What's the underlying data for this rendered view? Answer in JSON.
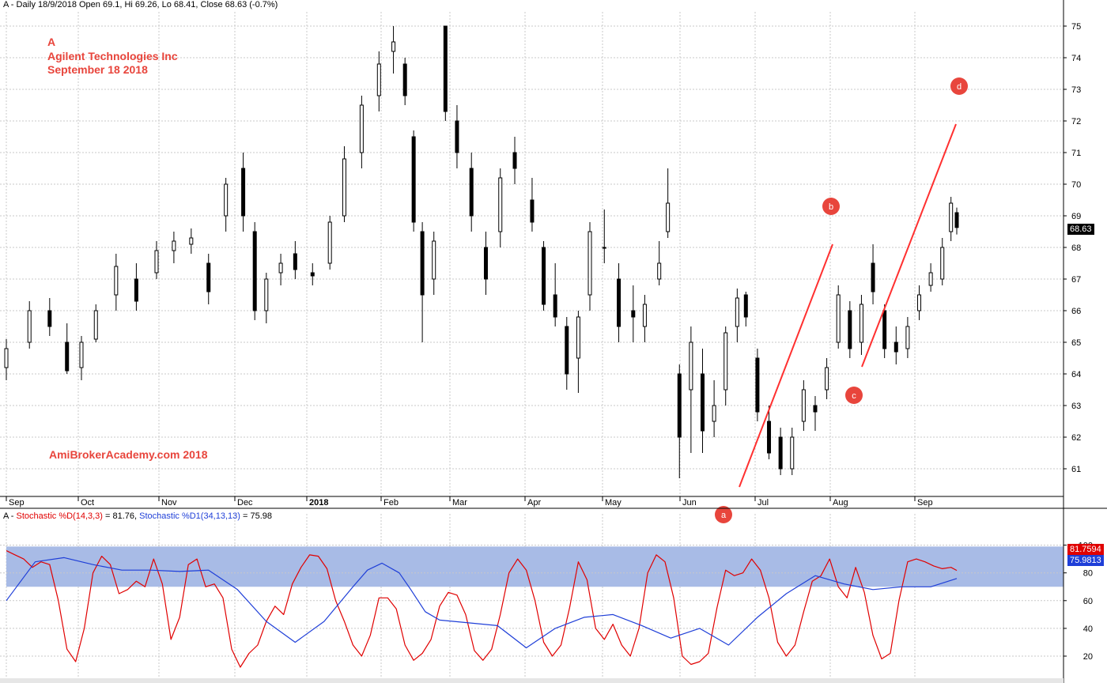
{
  "header": {
    "text": "A - Daily 18/9/2018 Open 69.1, Hi 69.26, Lo 68.41, Close 68.63 (-0.7%)"
  },
  "annotations": {
    "ticker": "A",
    "company": "Agilent Technologies Inc",
    "date": "September 18 2018",
    "watermark": "AmiBrokerAcademy.com  2018"
  },
  "oscillator_header": {
    "prefix": "A - ",
    "k_label": "Stochastic %D(14,3,3)",
    "k_value": " = 81.76, ",
    "d_label": "Stochastic %D1(34,13,13)",
    "d_value": " = 75.98"
  },
  "last_tags": {
    "price": "68.63",
    "k": "81.7594",
    "d": "75.9813"
  },
  "colors": {
    "annotation": "#e8453c",
    "band": "#a8bbe6",
    "k_line": "#e00000",
    "d_line": "#1f3fd8",
    "trendline": "#ff3030",
    "candle": "#000000"
  },
  "chart_data": [
    {
      "type": "candlestick",
      "title": "A - Daily 18/9/2018",
      "ylim": [
        60.5,
        75.2
      ],
      "y_ticks": [
        61,
        62,
        63,
        64,
        65,
        66,
        67,
        68,
        69,
        70,
        71,
        72,
        73,
        74,
        75
      ],
      "x_ticks": [
        "Sep",
        "Oct",
        "Nov",
        "Dec",
        "2018",
        "Feb",
        "Mar",
        "Apr",
        "May",
        "Jun",
        "Jul",
        "Aug",
        "Sep"
      ],
      "grid": true,
      "last_close": 68.63,
      "ohlc_sampled": [
        {
          "x": 0,
          "o": 64.2,
          "h": 65.1,
          "l": 63.8,
          "c": 64.8
        },
        {
          "x": 8,
          "o": 65.0,
          "h": 66.3,
          "l": 64.8,
          "c": 66.0
        },
        {
          "x": 15,
          "o": 66.0,
          "h": 66.4,
          "l": 65.2,
          "c": 65.5
        },
        {
          "x": 21,
          "o": 65.0,
          "h": 65.6,
          "l": 64.0,
          "c": 64.1
        },
        {
          "x": 26,
          "o": 64.2,
          "h": 65.2,
          "l": 63.8,
          "c": 65.0
        },
        {
          "x": 31,
          "o": 65.1,
          "h": 66.2,
          "l": 65.0,
          "c": 66.0
        },
        {
          "x": 38,
          "o": 66.5,
          "h": 67.8,
          "l": 66.0,
          "c": 67.4
        },
        {
          "x": 45,
          "o": 67.0,
          "h": 67.5,
          "l": 66.0,
          "c": 66.3
        },
        {
          "x": 52,
          "o": 67.2,
          "h": 68.2,
          "l": 67.0,
          "c": 67.9
        },
        {
          "x": 58,
          "o": 67.9,
          "h": 68.5,
          "l": 67.5,
          "c": 68.2
        },
        {
          "x": 64,
          "o": 68.1,
          "h": 68.6,
          "l": 67.8,
          "c": 68.3
        },
        {
          "x": 70,
          "o": 67.5,
          "h": 67.8,
          "l": 66.2,
          "c": 66.6
        },
        {
          "x": 76,
          "o": 69.0,
          "h": 70.2,
          "l": 68.5,
          "c": 70.0
        },
        {
          "x": 82,
          "o": 70.5,
          "h": 71.0,
          "l": 68.5,
          "c": 69.0
        },
        {
          "x": 86,
          "o": 68.5,
          "h": 68.8,
          "l": 65.7,
          "c": 66.0
        },
        {
          "x": 90,
          "o": 66.0,
          "h": 67.2,
          "l": 65.6,
          "c": 67.0
        },
        {
          "x": 95,
          "o": 67.2,
          "h": 67.8,
          "l": 66.8,
          "c": 67.5
        },
        {
          "x": 100,
          "o": 67.8,
          "h": 68.2,
          "l": 67.0,
          "c": 67.3
        },
        {
          "x": 106,
          "o": 67.2,
          "h": 67.5,
          "l": 66.8,
          "c": 67.1
        },
        {
          "x": 112,
          "o": 67.5,
          "h": 69.0,
          "l": 67.3,
          "c": 68.8
        },
        {
          "x": 117,
          "o": 69.0,
          "h": 71.2,
          "l": 68.8,
          "c": 70.8
        },
        {
          "x": 123,
          "o": 71.0,
          "h": 72.8,
          "l": 70.5,
          "c": 72.5
        },
        {
          "x": 129,
          "o": 72.8,
          "h": 74.2,
          "l": 72.3,
          "c": 73.8
        },
        {
          "x": 134,
          "o": 74.2,
          "h": 75.0,
          "l": 73.5,
          "c": 74.5
        },
        {
          "x": 138,
          "o": 73.8,
          "h": 74.0,
          "l": 72.5,
          "c": 72.8
        },
        {
          "x": 141,
          "o": 71.5,
          "h": 71.7,
          "l": 68.5,
          "c": 68.8
        },
        {
          "x": 144,
          "o": 68.5,
          "h": 68.8,
          "l": 65.0,
          "c": 66.5
        },
        {
          "x": 148,
          "o": 67.0,
          "h": 68.5,
          "l": 66.5,
          "c": 68.2
        },
        {
          "x": 152,
          "o": 75.0,
          "h": 75.0,
          "l": 72.0,
          "c": 72.3
        },
        {
          "x": 156,
          "o": 72.0,
          "h": 72.5,
          "l": 70.5,
          "c": 71.0
        },
        {
          "x": 161,
          "o": 70.5,
          "h": 71.0,
          "l": 68.5,
          "c": 69.0
        },
        {
          "x": 166,
          "o": 68.0,
          "h": 68.5,
          "l": 66.5,
          "c": 67.0
        },
        {
          "x": 171,
          "o": 68.5,
          "h": 70.5,
          "l": 68.0,
          "c": 70.2
        },
        {
          "x": 176,
          "o": 71.0,
          "h": 71.5,
          "l": 70.0,
          "c": 70.5
        },
        {
          "x": 182,
          "o": 69.5,
          "h": 70.2,
          "l": 68.5,
          "c": 68.8
        },
        {
          "x": 186,
          "o": 68.0,
          "h": 68.2,
          "l": 66.0,
          "c": 66.2
        },
        {
          "x": 190,
          "o": 66.5,
          "h": 67.5,
          "l": 65.5,
          "c": 65.8
        },
        {
          "x": 194,
          "o": 65.5,
          "h": 65.8,
          "l": 63.5,
          "c": 64.0
        },
        {
          "x": 198,
          "o": 64.5,
          "h": 66.0,
          "l": 63.4,
          "c": 65.8
        },
        {
          "x": 202,
          "o": 66.5,
          "h": 68.8,
          "l": 66.0,
          "c": 68.5
        },
        {
          "x": 207,
          "o": 68.0,
          "h": 69.2,
          "l": 67.5,
          "c": 68.0
        },
        {
          "x": 212,
          "o": 67.0,
          "h": 67.5,
          "l": 65.0,
          "c": 65.5
        },
        {
          "x": 217,
          "o": 66.0,
          "h": 66.8,
          "l": 65.0,
          "c": 65.8
        },
        {
          "x": 221,
          "o": 65.5,
          "h": 66.5,
          "l": 65.0,
          "c": 66.2
        },
        {
          "x": 226,
          "o": 67.0,
          "h": 68.2,
          "l": 66.8,
          "c": 67.5
        },
        {
          "x": 229,
          "o": 68.5,
          "h": 70.5,
          "l": 68.3,
          "c": 69.4
        },
        {
          "x": 233,
          "o": 64.0,
          "h": 64.3,
          "l": 60.7,
          "c": 62.0
        },
        {
          "x": 237,
          "o": 63.5,
          "h": 65.5,
          "l": 61.5,
          "c": 65.0
        },
        {
          "x": 241,
          "o": 64.0,
          "h": 64.8,
          "l": 61.5,
          "c": 62.2
        },
        {
          "x": 245,
          "o": 62.5,
          "h": 63.8,
          "l": 62.0,
          "c": 63.0
        },
        {
          "x": 249,
          "o": 63.5,
          "h": 65.5,
          "l": 63.0,
          "c": 65.3
        },
        {
          "x": 253,
          "o": 65.5,
          "h": 66.7,
          "l": 65.0,
          "c": 66.4
        },
        {
          "x": 256,
          "o": 66.5,
          "h": 66.6,
          "l": 65.5,
          "c": 65.8
        },
        {
          "x": 260,
          "o": 64.5,
          "h": 64.8,
          "l": 62.5,
          "c": 62.8
        },
        {
          "x": 264,
          "o": 62.5,
          "h": 63.0,
          "l": 61.3,
          "c": 61.5
        },
        {
          "x": 268,
          "o": 62.0,
          "h": 62.3,
          "l": 60.8,
          "c": 61.0
        },
        {
          "x": 272,
          "o": 61.0,
          "h": 62.3,
          "l": 60.8,
          "c": 62.0
        },
        {
          "x": 276,
          "o": 62.5,
          "h": 63.8,
          "l": 62.2,
          "c": 63.5
        },
        {
          "x": 280,
          "o": 63.0,
          "h": 63.3,
          "l": 62.2,
          "c": 62.8
        },
        {
          "x": 284,
          "o": 63.5,
          "h": 64.5,
          "l": 63.2,
          "c": 64.2
        },
        {
          "x": 288,
          "o": 65.0,
          "h": 66.8,
          "l": 64.8,
          "c": 66.5
        },
        {
          "x": 292,
          "o": 66.0,
          "h": 66.3,
          "l": 64.5,
          "c": 64.8
        },
        {
          "x": 296,
          "o": 65.0,
          "h": 66.5,
          "l": 64.6,
          "c": 66.2
        },
        {
          "x": 300,
          "o": 67.5,
          "h": 68.1,
          "l": 66.2,
          "c": 66.6
        },
        {
          "x": 304,
          "o": 66.0,
          "h": 66.2,
          "l": 64.5,
          "c": 64.8
        },
        {
          "x": 308,
          "o": 65.0,
          "h": 65.5,
          "l": 64.3,
          "c": 64.7
        },
        {
          "x": 312,
          "o": 64.8,
          "h": 65.8,
          "l": 64.5,
          "c": 65.5
        },
        {
          "x": 316,
          "o": 66.0,
          "h": 66.8,
          "l": 65.7,
          "c": 66.5
        },
        {
          "x": 320,
          "o": 66.8,
          "h": 67.5,
          "l": 66.6,
          "c": 67.2
        },
        {
          "x": 324,
          "o": 67.0,
          "h": 68.3,
          "l": 66.8,
          "c": 68.0
        },
        {
          "x": 327,
          "o": 68.5,
          "h": 69.6,
          "l": 68.2,
          "c": 69.4
        },
        {
          "x": 329,
          "o": 69.1,
          "h": 69.26,
          "l": 68.41,
          "c": 68.63
        }
      ]
    },
    {
      "type": "line",
      "title": "Stochastic",
      "ylim": [
        10,
        105
      ],
      "y_ticks": [
        20,
        40,
        60,
        80,
        100
      ],
      "band": [
        70,
        99
      ],
      "series": [
        {
          "name": "Stochastic %D(14,3,3)",
          "x": [
            0,
            3,
            6,
            9,
            12,
            15,
            18,
            21,
            24,
            27,
            30,
            33,
            36,
            39,
            42,
            45,
            48,
            51,
            54,
            57,
            60,
            63,
            66,
            69,
            72,
            75,
            78,
            81,
            84,
            87,
            90,
            93,
            96,
            99,
            102,
            105,
            108,
            111,
            114,
            117,
            120,
            123,
            126,
            129,
            132,
            135,
            138,
            141,
            144,
            147,
            150,
            153,
            156,
            159,
            162,
            165,
            168,
            171,
            174,
            177,
            180,
            183,
            186,
            189,
            192,
            195,
            198,
            201,
            204,
            207,
            210,
            213,
            216,
            219,
            222,
            225,
            228,
            231,
            234,
            237,
            240,
            243,
            246,
            249,
            252,
            255,
            258,
            261,
            264,
            267,
            270,
            273,
            276,
            279,
            282,
            285,
            288,
            291,
            294,
            297,
            300,
            303,
            306,
            309,
            312,
            315,
            318,
            321,
            324,
            327,
            329
          ],
          "values": [
            96,
            93,
            90,
            84,
            88,
            86,
            60,
            25,
            16,
            40,
            80,
            92,
            86,
            65,
            68,
            74,
            70,
            90,
            72,
            32,
            48,
            86,
            90,
            70,
            72,
            62,
            25,
            12,
            22,
            28,
            45,
            56,
            50,
            72,
            84,
            93,
            92,
            83,
            60,
            45,
            28,
            20,
            35,
            62,
            62,
            54,
            28,
            17,
            22,
            32,
            56,
            66,
            64,
            50,
            24,
            17,
            25,
            50,
            80,
            90,
            82,
            60,
            30,
            20,
            28,
            55,
            88,
            75,
            40,
            32,
            43,
            28,
            20,
            40,
            80,
            93,
            88,
            62,
            20,
            14,
            16,
            22,
            55,
            82,
            78,
            80,
            90,
            82,
            62,
            30,
            20,
            28,
            52,
            74,
            78,
            90,
            70,
            62,
            84,
            66,
            35,
            18,
            22,
            60,
            88,
            90,
            88,
            85,
            83,
            84,
            81.76
          ]
        },
        {
          "name": "Stochastic %D1(34,13,13)",
          "x": [
            0,
            10,
            20,
            30,
            40,
            50,
            60,
            70,
            80,
            90,
            100,
            110,
            120,
            125,
            130,
            136,
            140,
            145,
            150,
            160,
            170,
            180,
            190,
            200,
            210,
            220,
            230,
            240,
            250,
            260,
            270,
            280,
            290,
            300,
            310,
            320,
            329
          ],
          "values": [
            60,
            88,
            91,
            86,
            82,
            82,
            81,
            82,
            68,
            45,
            30,
            45,
            70,
            82,
            87,
            80,
            68,
            52,
            46,
            44,
            42,
            26,
            40,
            48,
            50,
            42,
            33,
            40,
            28,
            48,
            65,
            78,
            72,
            68,
            70,
            70,
            75.98
          ]
        }
      ]
    }
  ]
}
